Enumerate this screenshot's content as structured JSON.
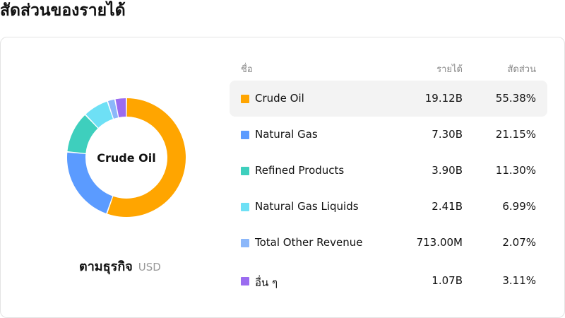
{
  "page": {
    "title": "สัดส่วนของรายได้"
  },
  "donut": {
    "center_label": "Crude Oil"
  },
  "caption": {
    "by": "ตามธุรกิจ",
    "currency": "USD"
  },
  "table": {
    "headers": {
      "name": "ชื่อ",
      "revenue": "รายได้",
      "share": "สัดส่วน"
    }
  },
  "chart_data": {
    "type": "pie",
    "categories": [
      "Crude Oil",
      "Natural Gas",
      "Refined Products",
      "Natural Gas Liquids",
      "Total Other Revenue",
      "อื่น ๆ"
    ],
    "revenue_labels": [
      "19.12B",
      "7.30B",
      "3.90B",
      "2.41B",
      "713.00M",
      "1.07B"
    ],
    "share_labels": [
      "55.38%",
      "21.15%",
      "11.30%",
      "6.99%",
      "2.07%",
      "3.11%"
    ],
    "values": [
      55.38,
      21.15,
      11.3,
      6.99,
      2.07,
      3.11
    ],
    "colors": [
      "#ffa500",
      "#5b9bff",
      "#3ecfbd",
      "#6ee0f5",
      "#8bb7fa",
      "#9b6cf0"
    ],
    "active_index": 0
  }
}
